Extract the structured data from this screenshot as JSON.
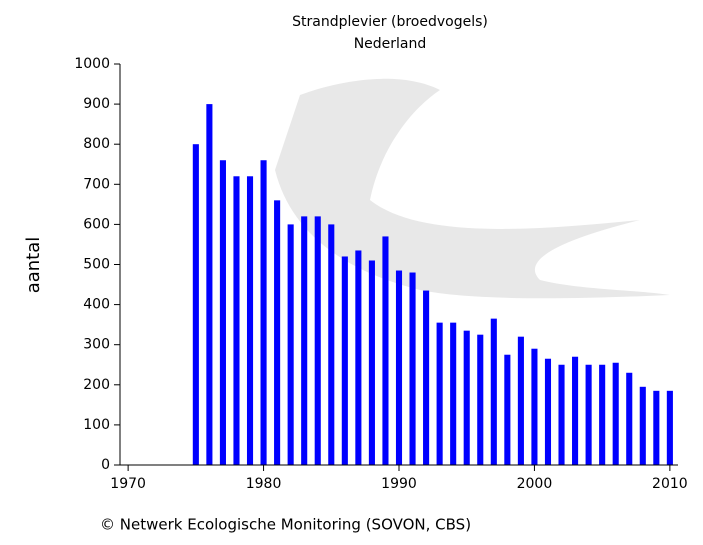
{
  "chart_data": {
    "type": "bar",
    "title": "Strandplevier (broedvogels)",
    "subtitle": "Nederland",
    "y_label": "aantal",
    "footer": "© Netwerk Ecologische Monitoring (SOVON, CBS)",
    "x": [
      1975,
      1976,
      1977,
      1978,
      1979,
      1980,
      1981,
      1982,
      1983,
      1984,
      1985,
      1986,
      1987,
      1988,
      1989,
      1990,
      1991,
      1992,
      1993,
      1994,
      1995,
      1996,
      1997,
      1998,
      1999,
      2000,
      2001,
      2002,
      2003,
      2004,
      2005,
      2006,
      2007,
      2008,
      2009,
      2010
    ],
    "values": [
      800,
      900,
      760,
      720,
      720,
      760,
      660,
      600,
      620,
      620,
      600,
      520,
      535,
      510,
      570,
      485,
      480,
      435,
      355,
      355,
      335,
      325,
      365,
      275,
      320,
      290,
      265,
      250,
      270,
      250,
      250,
      255,
      230,
      195,
      185,
      185
    ],
    "color": "#0000ff",
    "xlim": [
      1969.4,
      2010.6
    ],
    "xticks": [
      1970,
      1980,
      1990,
      2000,
      2010
    ],
    "ylim": [
      0,
      1000
    ],
    "yticks": [
      0,
      100,
      200,
      300,
      400,
      500,
      600,
      700,
      800,
      900,
      1000
    ],
    "grid": false
  }
}
